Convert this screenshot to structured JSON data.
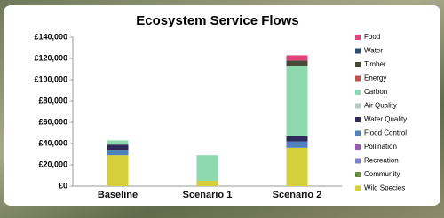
{
  "chart_data": {
    "type": "stacked_bar",
    "title": "Ecosystem Service Flows",
    "categories": [
      "Baseline",
      "Scenario 1",
      "Scenario 2"
    ],
    "series": [
      {
        "name": "Wild Species",
        "color": "#d4cf3a",
        "values": [
          29000,
          5000,
          36000
        ]
      },
      {
        "name": "Community",
        "color": "#6b8e3a",
        "values": [
          0,
          0,
          0
        ]
      },
      {
        "name": "Recreation",
        "color": "#7f7fd0",
        "values": [
          0,
          0,
          0
        ]
      },
      {
        "name": "Pollination",
        "color": "#9b59b6",
        "values": [
          0,
          0,
          0
        ]
      },
      {
        "name": "Flood Control",
        "color": "#4f81bd",
        "values": [
          5000,
          0,
          6000
        ]
      },
      {
        "name": "Water Quality",
        "color": "#2e2a5a",
        "values": [
          5000,
          0,
          5000
        ]
      },
      {
        "name": "Air Quality",
        "color": "#b7c8c0",
        "values": [
          0,
          0,
          0
        ]
      },
      {
        "name": "Carbon",
        "color": "#8fd9b0",
        "values": [
          4000,
          24000,
          66000
        ]
      },
      {
        "name": "Energy",
        "color": "#c0504d",
        "values": [
          0,
          0,
          0
        ]
      },
      {
        "name": "Timber",
        "color": "#4a4a3a",
        "values": [
          0,
          0,
          5000
        ]
      },
      {
        "name": "Water",
        "color": "#2c4d75",
        "values": [
          0,
          0,
          0
        ]
      },
      {
        "name": "Food",
        "color": "#e0457b",
        "values": [
          0,
          0,
          5000
        ]
      }
    ],
    "ylim": [
      0,
      140000
    ],
    "yticks": [
      {
        "value": 0,
        "label": "£0"
      },
      {
        "value": 20000,
        "label": "£20,000"
      },
      {
        "value": 40000,
        "label": "£40,000"
      },
      {
        "value": 60000,
        "label": "£60,000"
      },
      {
        "value": 80000,
        "label": "£80,000"
      },
      {
        "value": 100000,
        "label": "£100,000"
      },
      {
        "value": 120000,
        "label": "£120,000"
      },
      {
        "value": 140000,
        "label": "£140,000"
      }
    ]
  }
}
